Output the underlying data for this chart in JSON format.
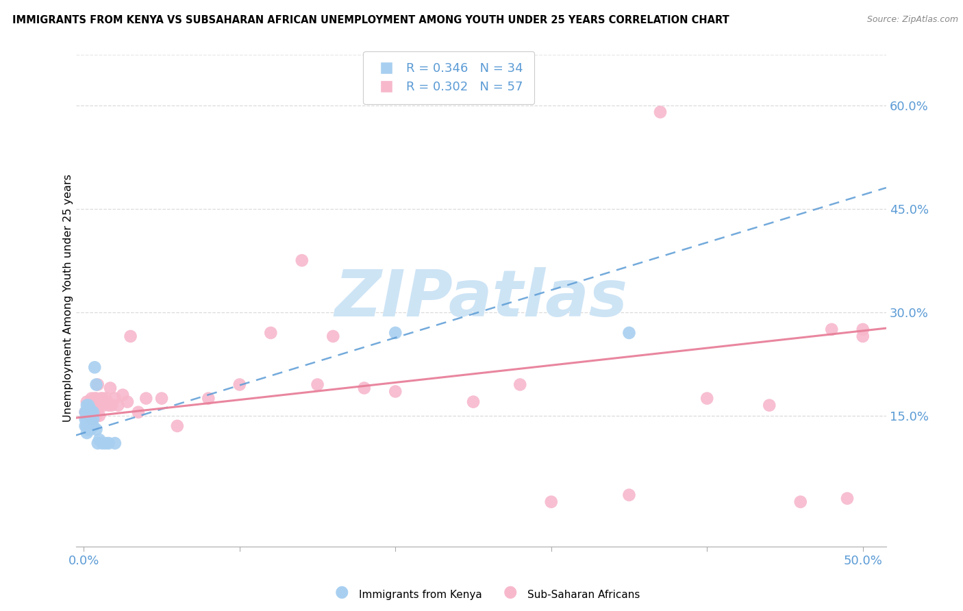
{
  "title": "IMMIGRANTS FROM KENYA VS SUBSAHARAN AFRICAN UNEMPLOYMENT AMONG YOUTH UNDER 25 YEARS CORRELATION CHART",
  "source": "Source: ZipAtlas.com",
  "tick_color": "#5b9bd5",
  "ylabel": "Unemployment Among Youth under 25 years",
  "xlim": [
    -0.005,
    0.515
  ],
  "ylim": [
    -0.04,
    0.68
  ],
  "yticks": [
    0.0,
    0.15,
    0.3,
    0.45,
    0.6
  ],
  "ytick_labels": [
    "",
    "15.0%",
    "30.0%",
    "45.0%",
    "60.0%"
  ],
  "xticks": [
    0.0,
    0.1,
    0.2,
    0.3,
    0.4,
    0.5
  ],
  "xtick_labels": [
    "0.0%",
    "",
    "",
    "",
    "",
    "50.0%"
  ],
  "grid_color": "#d3d3d3",
  "watermark_text": "ZIPatlas",
  "watermark_color": "#cde4f5",
  "blue_scatter_color": "#a8cff0",
  "pink_scatter_color": "#f7b8cc",
  "blue_line_color": "#5b9bd5",
  "pink_line_color": "#e8809a",
  "legend_R_blue": "0.346",
  "legend_N_blue": "34",
  "legend_R_pink": "0.302",
  "legend_N_pink": "57",
  "blue_line_y0": 0.125,
  "blue_line_y1": 0.47,
  "pink_line_y0": 0.148,
  "pink_line_y1": 0.273,
  "kenya_x": [
    0.001,
    0.001,
    0.001,
    0.002,
    0.002,
    0.002,
    0.002,
    0.002,
    0.003,
    0.003,
    0.003,
    0.003,
    0.003,
    0.004,
    0.004,
    0.004,
    0.004,
    0.005,
    0.005,
    0.005,
    0.006,
    0.006,
    0.006,
    0.007,
    0.008,
    0.008,
    0.009,
    0.01,
    0.012,
    0.014,
    0.016,
    0.02,
    0.2,
    0.35
  ],
  "kenya_y": [
    0.135,
    0.145,
    0.155,
    0.125,
    0.135,
    0.145,
    0.155,
    0.165,
    0.13,
    0.14,
    0.15,
    0.155,
    0.165,
    0.13,
    0.14,
    0.15,
    0.16,
    0.135,
    0.145,
    0.155,
    0.135,
    0.145,
    0.155,
    0.22,
    0.13,
    0.195,
    0.11,
    0.115,
    0.11,
    0.11,
    0.11,
    0.11,
    0.27,
    0.27
  ],
  "subsaharan_x": [
    0.001,
    0.002,
    0.002,
    0.003,
    0.003,
    0.004,
    0.004,
    0.005,
    0.005,
    0.005,
    0.006,
    0.006,
    0.007,
    0.007,
    0.008,
    0.008,
    0.009,
    0.009,
    0.01,
    0.01,
    0.011,
    0.012,
    0.013,
    0.014,
    0.015,
    0.016,
    0.017,
    0.018,
    0.02,
    0.022,
    0.025,
    0.028,
    0.03,
    0.035,
    0.04,
    0.05,
    0.06,
    0.08,
    0.1,
    0.12,
    0.14,
    0.15,
    0.16,
    0.18,
    0.2,
    0.25,
    0.28,
    0.3,
    0.35,
    0.37,
    0.4,
    0.44,
    0.46,
    0.48,
    0.49,
    0.5,
    0.5
  ],
  "subsaharan_y": [
    0.155,
    0.155,
    0.17,
    0.15,
    0.165,
    0.15,
    0.165,
    0.145,
    0.165,
    0.175,
    0.155,
    0.17,
    0.155,
    0.175,
    0.15,
    0.175,
    0.16,
    0.195,
    0.15,
    0.165,
    0.175,
    0.175,
    0.165,
    0.175,
    0.17,
    0.165,
    0.19,
    0.165,
    0.175,
    0.165,
    0.18,
    0.17,
    0.265,
    0.155,
    0.175,
    0.175,
    0.135,
    0.175,
    0.195,
    0.27,
    0.375,
    0.195,
    0.265,
    0.19,
    0.185,
    0.17,
    0.195,
    0.025,
    0.035,
    0.59,
    0.175,
    0.165,
    0.025,
    0.275,
    0.03,
    0.275,
    0.265
  ]
}
